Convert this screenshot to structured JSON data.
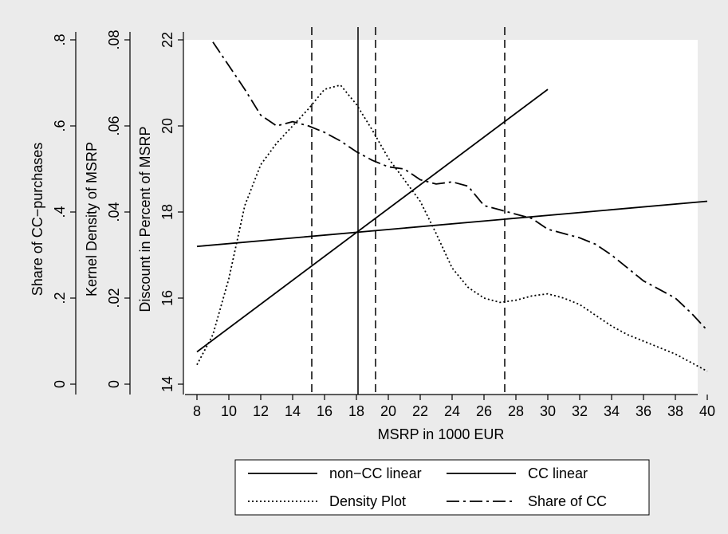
{
  "chart_data": {
    "type": "line",
    "xlabel": "MSRP in 1000 EUR",
    "x_ticks": [
      8,
      10,
      12,
      14,
      16,
      18,
      20,
      22,
      24,
      26,
      28,
      30,
      32,
      34,
      36,
      38,
      40
    ],
    "xlim": [
      8,
      40
    ],
    "y_axes": [
      {
        "label": "Discount in Percent of MSRP",
        "ylim": [
          14,
          22
        ],
        "ticks": [
          14,
          16,
          18,
          20,
          22
        ],
        "tick_labels": [
          "14",
          "16",
          "18",
          "20",
          "22"
        ]
      },
      {
        "label": "Kernel Density of MSRP",
        "ylim": [
          0,
          0.08
        ],
        "ticks": [
          0,
          0.02,
          0.04,
          0.06,
          0.08
        ],
        "tick_labels": [
          "0",
          ".02",
          ".04",
          ".06",
          ".08"
        ]
      },
      {
        "label": "Share of CC−purchases",
        "ylim": [
          0,
          0.8
        ],
        "ticks": [
          0,
          0.2,
          0.4,
          0.6,
          0.8
        ],
        "tick_labels": [
          "0",
          ".2",
          ".4",
          ".6",
          ".8"
        ]
      }
    ],
    "vertical_lines": [
      {
        "x": 15.2,
        "style": "dashed"
      },
      {
        "x": 18.1,
        "style": "solid"
      },
      {
        "x": 19.2,
        "style": "dashed"
      },
      {
        "x": 27.3,
        "style": "dashed"
      }
    ],
    "series": [
      {
        "name": "non−CC linear",
        "axis": 0,
        "style": "solid",
        "x": [
          8,
          40
        ],
        "y": [
          17.2,
          18.25
        ]
      },
      {
        "name": "CC linear",
        "axis": 0,
        "style": "solid",
        "x": [
          8,
          30
        ],
        "y": [
          14.75,
          20.85
        ]
      },
      {
        "name": "Density Plot",
        "axis": 1,
        "style": "dotted",
        "x": [
          8,
          9,
          10,
          11,
          12,
          13,
          14,
          15,
          16,
          17,
          18,
          19,
          20,
          21,
          22,
          23,
          24,
          25,
          26,
          27,
          28,
          29,
          30,
          31,
          32,
          33,
          34,
          35,
          36,
          37,
          38,
          39,
          40
        ],
        "y": [
          0.0045,
          0.0115,
          0.0245,
          0.0415,
          0.051,
          0.056,
          0.06,
          0.064,
          0.0685,
          0.0695,
          0.065,
          0.059,
          0.0525,
          0.0475,
          0.0425,
          0.035,
          0.027,
          0.0225,
          0.02,
          0.019,
          0.0195,
          0.0205,
          0.021,
          0.02,
          0.0185,
          0.016,
          0.0135,
          0.0115,
          0.01,
          0.0085,
          0.007,
          0.005,
          0.003
        ]
      },
      {
        "name": "Share of CC",
        "axis": 2,
        "style": "dashdot",
        "x": [
          9,
          10,
          11,
          12,
          13,
          14,
          15,
          16,
          17,
          18,
          19,
          20,
          21,
          22,
          23,
          24,
          25,
          26,
          27,
          28,
          29,
          30,
          31,
          32,
          33,
          34,
          35,
          36,
          37,
          38,
          39,
          40
        ],
        "y": [
          0.795,
          0.74,
          0.685,
          0.625,
          0.6,
          0.61,
          0.6,
          0.585,
          0.565,
          0.54,
          0.52,
          0.505,
          0.5,
          0.475,
          0.465,
          0.47,
          0.46,
          0.415,
          0.405,
          0.395,
          0.385,
          0.36,
          0.35,
          0.34,
          0.325,
          0.3,
          0.27,
          0.24,
          0.22,
          0.2,
          0.165,
          0.125
        ]
      }
    ],
    "legend": {
      "position": "bottom",
      "columns": 2
    }
  }
}
